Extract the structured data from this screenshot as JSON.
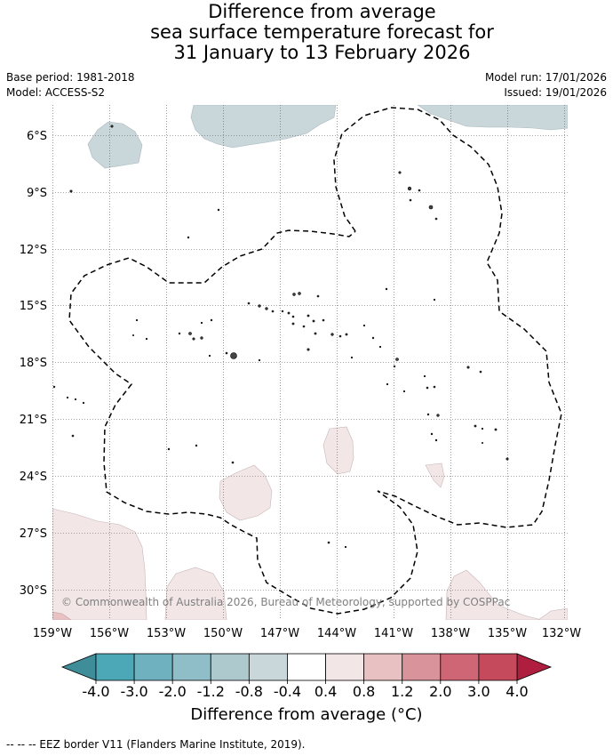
{
  "title": {
    "line1": "Difference from average",
    "line2": "sea surface temperature forecast for",
    "line3": "31 January to 13 February 2026"
  },
  "meta": {
    "base_period": "Base period: 1981-2018",
    "model": "Model: ACCESS-S2",
    "model_run": "Model run: 17/01/2026",
    "issued": "Issued: 19/01/2026"
  },
  "map": {
    "lon_labels": [
      "159°W",
      "156°W",
      "153°W",
      "150°W",
      "147°W",
      "144°W",
      "141°W",
      "138°W",
      "135°W",
      "132°W"
    ],
    "lat_labels": [
      "6°S",
      "9°S",
      "12°S",
      "15°S",
      "18°S",
      "21°S",
      "24°S",
      "27°S",
      "30°S"
    ],
    "copyright": "© Commonwealth of Australia 2026, Bureau of Meteorology, supported by COSPPac"
  },
  "colorbar": {
    "ticks": [
      "-4.0",
      "-3.0",
      "-2.0",
      "-1.2",
      "-0.8",
      "-0.4",
      "0.4",
      "0.8",
      "1.2",
      "2.0",
      "3.0",
      "4.0"
    ],
    "colors": [
      "#3f8d99",
      "#4ca7b6",
      "#6fb1bf",
      "#8fbec8",
      "#adc9ce",
      "#c9d7db",
      "#ffffff",
      "#f2e6e6",
      "#e8c2c2",
      "#d9939b",
      "#cf6676",
      "#c44a5c",
      "#b01e3f"
    ],
    "label": "Difference from average (°C)"
  },
  "footer": "--  --  -- EEZ border V11 (Flanders Marine Institute, 2019)."
}
